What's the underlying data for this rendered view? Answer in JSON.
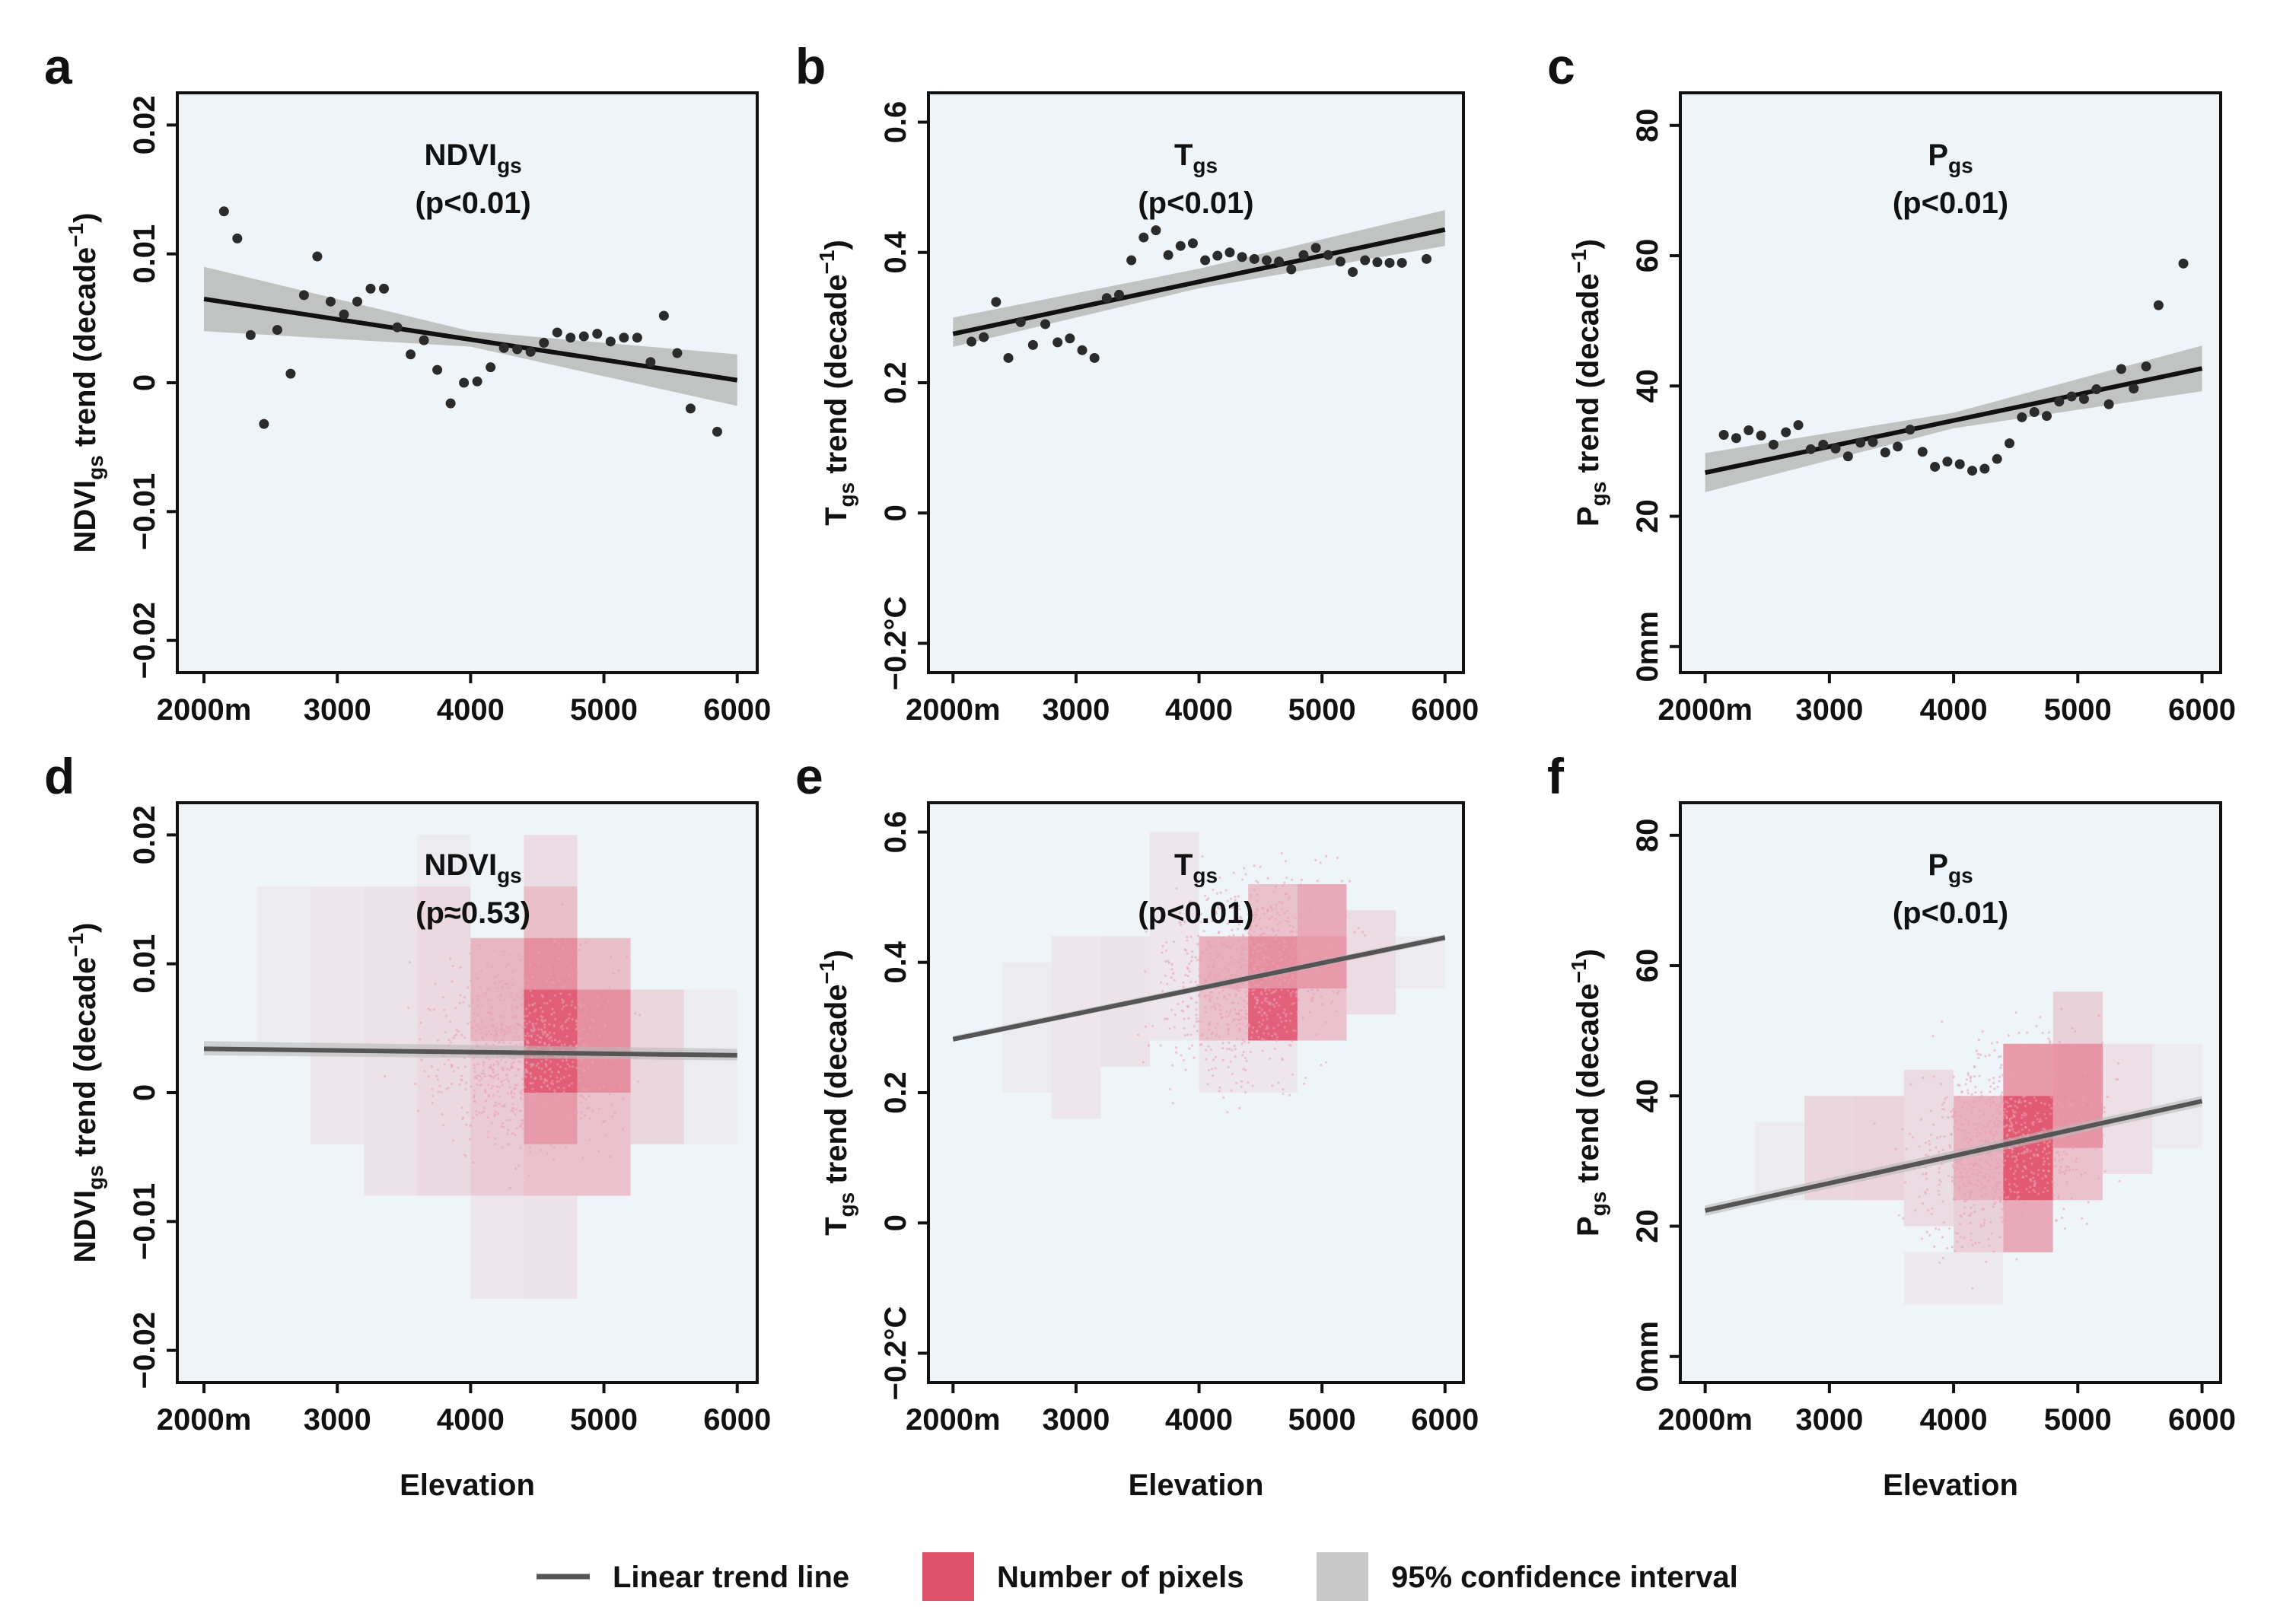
{
  "chart_data": [
    {
      "panel": "a",
      "type": "scatter",
      "title": "NDVI",
      "title_sub": "gs",
      "pvalue": "(p<0.01)",
      "ylabel_pre": "NDVI",
      "ylabel_sub": "gs",
      "ylabel_post": " trend (decade",
      "ylabel_sup": "−1",
      "ylabel_end": ")",
      "xlabel": "",
      "xlim": [
        1800,
        6150
      ],
      "ylim": [
        -0.0225,
        0.0225
      ],
      "xticks": [
        2000,
        3000,
        4000,
        5000,
        6000
      ],
      "xtick_labels": [
        "2000m",
        "3000",
        "4000",
        "5000",
        "6000"
      ],
      "yticks": [
        -0.02,
        -0.01,
        0,
        0.01,
        0.02
      ],
      "ytick_labels": [
        "−0.02",
        "−0.01",
        "0",
        "0.01",
        "0.02"
      ],
      "points": [
        [
          2150,
          0.0133
        ],
        [
          2250,
          0.0112
        ],
        [
          2350,
          0.0037
        ],
        [
          2450,
          -0.0032
        ],
        [
          2550,
          0.0041
        ],
        [
          2650,
          0.0007
        ],
        [
          2750,
          0.0068
        ],
        [
          2850,
          0.0098
        ],
        [
          2950,
          0.0063
        ],
        [
          3050,
          0.0053
        ],
        [
          3150,
          0.0063
        ],
        [
          3250,
          0.0073
        ],
        [
          3350,
          0.0073
        ],
        [
          3450,
          0.0043
        ],
        [
          3550,
          0.0022
        ],
        [
          3650,
          0.0033
        ],
        [
          3750,
          0.001
        ],
        [
          3850,
          -0.0016
        ],
        [
          3950,
          0.0
        ],
        [
          4050,
          0.0001
        ],
        [
          4150,
          0.0012
        ],
        [
          4250,
          0.0027
        ],
        [
          4350,
          0.0026
        ],
        [
          4450,
          0.0024
        ],
        [
          4550,
          0.0031
        ],
        [
          4650,
          0.0039
        ],
        [
          4750,
          0.0035
        ],
        [
          4850,
          0.0036
        ],
        [
          4950,
          0.0038
        ],
        [
          5050,
          0.0032
        ],
        [
          5150,
          0.0035
        ],
        [
          5250,
          0.0035
        ],
        [
          5350,
          0.0016
        ],
        [
          5450,
          0.0052
        ],
        [
          5550,
          0.0023
        ],
        [
          5650,
          -0.002
        ],
        [
          5850,
          -0.0038
        ]
      ],
      "trend": {
        "x": [
          2000,
          6000
        ],
        "y": [
          0.0065,
          0.0002
        ]
      },
      "ci": {
        "x": [
          2000,
          4000,
          6000
        ],
        "lower": [
          0.004,
          0.0028,
          -0.0018
        ],
        "upper": [
          0.009,
          0.004,
          0.0022
        ]
      },
      "density": []
    },
    {
      "panel": "b",
      "type": "scatter",
      "title": "T",
      "title_sub": "gs",
      "pvalue": "(p<0.01)",
      "ylabel_pre": "T",
      "ylabel_sub": "gs",
      "ylabel_post": " trend (decade",
      "ylabel_sup": "−1",
      "ylabel_end": ")",
      "xlabel": "",
      "xlim": [
        1800,
        6150
      ],
      "ylim": [
        -0.245,
        0.645
      ],
      "xticks": [
        2000,
        3000,
        4000,
        5000,
        6000
      ],
      "xtick_labels": [
        "2000m",
        "3000",
        "4000",
        "5000",
        "6000"
      ],
      "yticks": [
        -0.2,
        0,
        0.2,
        0.4,
        0.6
      ],
      "ytick_labels": [
        "−0.2°C",
        "0",
        "0.2",
        "0.4",
        "0.6"
      ],
      "points": [
        [
          2150,
          0.263
        ],
        [
          2250,
          0.27
        ],
        [
          2350,
          0.324
        ],
        [
          2450,
          0.238
        ],
        [
          2550,
          0.293
        ],
        [
          2650,
          0.258
        ],
        [
          2750,
          0.29
        ],
        [
          2850,
          0.262
        ],
        [
          2950,
          0.268
        ],
        [
          3050,
          0.25
        ],
        [
          3150,
          0.238
        ],
        [
          3250,
          0.33
        ],
        [
          3350,
          0.335
        ],
        [
          3450,
          0.388
        ],
        [
          3550,
          0.423
        ],
        [
          3650,
          0.434
        ],
        [
          3750,
          0.396
        ],
        [
          3850,
          0.41
        ],
        [
          3950,
          0.414
        ],
        [
          4050,
          0.388
        ],
        [
          4150,
          0.395
        ],
        [
          4250,
          0.4
        ],
        [
          4350,
          0.393
        ],
        [
          4450,
          0.39
        ],
        [
          4550,
          0.388
        ],
        [
          4650,
          0.386
        ],
        [
          4750,
          0.374
        ],
        [
          4850,
          0.396
        ],
        [
          4950,
          0.407
        ],
        [
          5050,
          0.396
        ],
        [
          5150,
          0.386
        ],
        [
          5250,
          0.37
        ],
        [
          5350,
          0.388
        ],
        [
          5450,
          0.385
        ],
        [
          5550,
          0.384
        ],
        [
          5650,
          0.384
        ],
        [
          5850,
          0.39
        ]
      ],
      "trend": {
        "x": [
          2000,
          6000
        ],
        "y": [
          0.275,
          0.435
        ]
      },
      "ci": {
        "x": [
          2000,
          4000,
          6000
        ],
        "lower": [
          0.255,
          0.345,
          0.41
        ],
        "upper": [
          0.3,
          0.375,
          0.465
        ]
      },
      "density": []
    },
    {
      "panel": "c",
      "type": "scatter",
      "title": "P",
      "title_sub": "gs",
      "pvalue": "(p<0.01)",
      "ylabel_pre": "P",
      "ylabel_sub": "gs",
      "ylabel_post": " trend (decade",
      "ylabel_sup": "−1",
      "ylabel_end": ")",
      "xlabel": "",
      "xlim": [
        1800,
        6150
      ],
      "ylim": [
        -4,
        85
      ],
      "xticks": [
        2000,
        3000,
        4000,
        5000,
        6000
      ],
      "xtick_labels": [
        "2000m",
        "3000",
        "4000",
        "5000",
        "6000"
      ],
      "yticks": [
        0,
        20,
        40,
        60,
        80
      ],
      "ytick_labels": [
        "0mm",
        "20",
        "40",
        "60",
        "80"
      ],
      "points": [
        [
          2150,
          32.5
        ],
        [
          2250,
          32.0
        ],
        [
          2350,
          33.2
        ],
        [
          2450,
          32.4
        ],
        [
          2550,
          31.0
        ],
        [
          2650,
          32.9
        ],
        [
          2750,
          34.0
        ],
        [
          2850,
          30.3
        ],
        [
          2950,
          31.0
        ],
        [
          3050,
          30.4
        ],
        [
          3150,
          29.2
        ],
        [
          3250,
          31.3
        ],
        [
          3350,
          31.4
        ],
        [
          3450,
          29.8
        ],
        [
          3550,
          30.7
        ],
        [
          3650,
          33.3
        ],
        [
          3750,
          29.9
        ],
        [
          3850,
          27.6
        ],
        [
          3950,
          28.4
        ],
        [
          4050,
          28.0
        ],
        [
          4150,
          27.0
        ],
        [
          4250,
          27.3
        ],
        [
          4350,
          28.8
        ],
        [
          4450,
          31.2
        ],
        [
          4550,
          35.2
        ],
        [
          4650,
          36.0
        ],
        [
          4750,
          35.4
        ],
        [
          4850,
          37.6
        ],
        [
          4950,
          38.4
        ],
        [
          5050,
          38.0
        ],
        [
          5150,
          39.5
        ],
        [
          5250,
          37.2
        ],
        [
          5350,
          42.6
        ],
        [
          5450,
          39.6
        ],
        [
          5550,
          43.0
        ],
        [
          5650,
          52.4
        ],
        [
          5850,
          58.8
        ]
      ],
      "trend": {
        "x": [
          2000,
          6000
        ],
        "y": [
          26.7,
          42.7
        ]
      },
      "ci": {
        "x": [
          2000,
          4000,
          6000
        ],
        "lower": [
          23.7,
          33.5,
          39.2
        ],
        "upper": [
          29.7,
          35.9,
          46.2
        ]
      },
      "density": []
    },
    {
      "panel": "d",
      "type": "heatmap",
      "title": "NDVI",
      "title_sub": "gs",
      "pvalue": "(p≈0.53)",
      "ylabel_pre": "NDVI",
      "ylabel_sub": "gs",
      "ylabel_post": " trend (decade",
      "ylabel_sup": "−1",
      "ylabel_end": ")",
      "xlabel": "Elevation",
      "xlim": [
        1800,
        6150
      ],
      "ylim": [
        -0.0225,
        0.0225
      ],
      "xticks": [
        2000,
        3000,
        4000,
        5000,
        6000
      ],
      "xtick_labels": [
        "2000m",
        "3000",
        "4000",
        "5000",
        "6000"
      ],
      "yticks": [
        -0.02,
        -0.01,
        0,
        0.01,
        0.02
      ],
      "ytick_labels": [
        "−0.02",
        "−0.01",
        "0",
        "0.01",
        "0.02"
      ],
      "points": [],
      "trend": {
        "x": [
          2000,
          6000
        ],
        "y": [
          0.0034,
          0.0029
        ]
      },
      "ci": {
        "x": [
          2000,
          6000
        ],
        "lower": [
          0.0029,
          0.0025
        ],
        "upper": [
          0.004,
          0.0034
        ]
      },
      "density": [
        [
          2400,
          2800,
          0.004,
          0.016,
          0.05
        ],
        [
          2800,
          3200,
          -0.004,
          0.016,
          0.08
        ],
        [
          3200,
          3600,
          -0.008,
          0.016,
          0.1
        ],
        [
          3600,
          4000,
          -0.008,
          0.016,
          0.16
        ],
        [
          4000,
          4400,
          -0.008,
          0.004,
          0.25
        ],
        [
          4000,
          4400,
          0.004,
          0.012,
          0.38
        ],
        [
          4400,
          4800,
          -0.008,
          -0.004,
          0.3
        ],
        [
          4400,
          4800,
          -0.004,
          0.0,
          0.55
        ],
        [
          4400,
          4800,
          0.0,
          0.008,
          0.92
        ],
        [
          4400,
          4800,
          0.008,
          0.012,
          0.62
        ],
        [
          4400,
          4800,
          0.012,
          0.016,
          0.32
        ],
        [
          4400,
          4800,
          0.016,
          0.02,
          0.15
        ],
        [
          4800,
          5200,
          -0.008,
          0.0,
          0.3
        ],
        [
          4800,
          5200,
          0.0,
          0.008,
          0.62
        ],
        [
          4800,
          5200,
          0.008,
          0.012,
          0.32
        ],
        [
          5200,
          5600,
          -0.004,
          0.008,
          0.18
        ],
        [
          5600,
          6000,
          -0.004,
          0.008,
          0.05
        ],
        [
          3600,
          4000,
          0.016,
          0.02,
          0.05
        ],
        [
          4000,
          4400,
          -0.016,
          -0.008,
          0.08
        ],
        [
          4400,
          4800,
          -0.016,
          -0.008,
          0.1
        ]
      ]
    },
    {
      "panel": "e",
      "type": "heatmap",
      "title": "T",
      "title_sub": "gs",
      "pvalue": "(p<0.01)",
      "ylabel_pre": "T",
      "ylabel_sub": "gs",
      "ylabel_post": " trend (decade",
      "ylabel_sup": "−1",
      "ylabel_end": ")",
      "xlabel": "Elevation",
      "xlim": [
        1800,
        6150
      ],
      "ylim": [
        -0.245,
        0.645
      ],
      "xticks": [
        2000,
        3000,
        4000,
        5000,
        6000
      ],
      "xtick_labels": [
        "2000m",
        "3000",
        "4000",
        "5000",
        "6000"
      ],
      "yticks": [
        -0.2,
        0,
        0.2,
        0.4,
        0.6
      ],
      "ytick_labels": [
        "−0.2°C",
        "0",
        "0.2",
        "0.4",
        "0.6"
      ],
      "points": [],
      "trend": {
        "x": [
          2000,
          6000
        ],
        "y": [
          0.282,
          0.438
        ]
      },
      "ci": {
        "x": [
          2000,
          6000
        ],
        "lower": [
          0.278,
          0.433
        ],
        "upper": [
          0.287,
          0.443
        ]
      },
      "density": [
        [
          2400,
          2800,
          0.2,
          0.4,
          0.05
        ],
        [
          2800,
          3200,
          0.16,
          0.44,
          0.08
        ],
        [
          3200,
          3600,
          0.24,
          0.44,
          0.1
        ],
        [
          3600,
          4000,
          0.28,
          0.6,
          0.08
        ],
        [
          4000,
          4400,
          0.28,
          0.36,
          0.3
        ],
        [
          4000,
          4400,
          0.36,
          0.44,
          0.42
        ],
        [
          4400,
          4800,
          0.28,
          0.36,
          0.9
        ],
        [
          4400,
          4800,
          0.36,
          0.44,
          0.62
        ],
        [
          4400,
          4800,
          0.44,
          0.52,
          0.3
        ],
        [
          4800,
          5200,
          0.28,
          0.36,
          0.3
        ],
        [
          4800,
          5200,
          0.36,
          0.44,
          0.55
        ],
        [
          4800,
          5200,
          0.44,
          0.52,
          0.45
        ],
        [
          5200,
          5600,
          0.32,
          0.48,
          0.15
        ],
        [
          5600,
          6000,
          0.36,
          0.44,
          0.05
        ],
        [
          4000,
          4800,
          0.2,
          0.28,
          0.08
        ]
      ]
    },
    {
      "panel": "f",
      "type": "heatmap",
      "title": "P",
      "title_sub": "gs",
      "pvalue": "(p<0.01)",
      "ylabel_pre": "P",
      "ylabel_sub": "gs",
      "ylabel_post": " trend (decade",
      "ylabel_sup": "−1",
      "ylabel_end": ")",
      "xlabel": "Elevation",
      "xlim": [
        1800,
        6150
      ],
      "ylim": [
        -4,
        85
      ],
      "xticks": [
        2000,
        3000,
        4000,
        5000,
        6000
      ],
      "xtick_labels": [
        "2000m",
        "3000",
        "4000",
        "5000",
        "6000"
      ],
      "yticks": [
        0,
        20,
        40,
        60,
        80
      ],
      "ytick_labels": [
        "0mm",
        "20",
        "40",
        "60",
        "80"
      ],
      "points": [],
      "trend": {
        "x": [
          2000,
          6000
        ],
        "y": [
          22.4,
          39.2
        ]
      },
      "ci": {
        "x": [
          2000,
          6000
        ],
        "lower": [
          21.6,
          38.4
        ],
        "upper": [
          23.2,
          40.0
        ]
      },
      "density": [
        [
          2400,
          2800,
          24,
          36,
          0.05
        ],
        [
          2800,
          3200,
          24,
          40,
          0.18
        ],
        [
          3200,
          3600,
          24,
          40,
          0.2
        ],
        [
          3600,
          4000,
          20,
          44,
          0.15
        ],
        [
          4000,
          4400,
          16,
          24,
          0.22
        ],
        [
          4000,
          4400,
          24,
          40,
          0.4
        ],
        [
          4400,
          4800,
          16,
          24,
          0.45
        ],
        [
          4400,
          4800,
          24,
          40,
          0.95
        ],
        [
          4400,
          4800,
          40,
          48,
          0.55
        ],
        [
          4800,
          5200,
          24,
          32,
          0.3
        ],
        [
          4800,
          5200,
          32,
          48,
          0.58
        ],
        [
          4800,
          5200,
          48,
          56,
          0.22
        ],
        [
          5200,
          5600,
          28,
          48,
          0.12
        ],
        [
          5600,
          6000,
          32,
          48,
          0.05
        ],
        [
          3600,
          4400,
          8,
          16,
          0.06
        ]
      ]
    }
  ],
  "legend": {
    "items": [
      {
        "label": "Linear trend line",
        "swatch": "line",
        "color": "#555555"
      },
      {
        "label": "Number of pixels",
        "swatch": "box",
        "color": "#e0506a"
      },
      {
        "label": "95% confidence interval",
        "swatch": "box",
        "color": "#c8c8c8"
      }
    ]
  },
  "colors": {
    "panel_bg": "#eef4f8",
    "point": "#2b2b2b",
    "trend_dark": "#111111",
    "trend_grey": "#555555",
    "ci": "#b9b9b9",
    "density": "#e0506a",
    "scatter_pixels": "#e9a1b2"
  }
}
